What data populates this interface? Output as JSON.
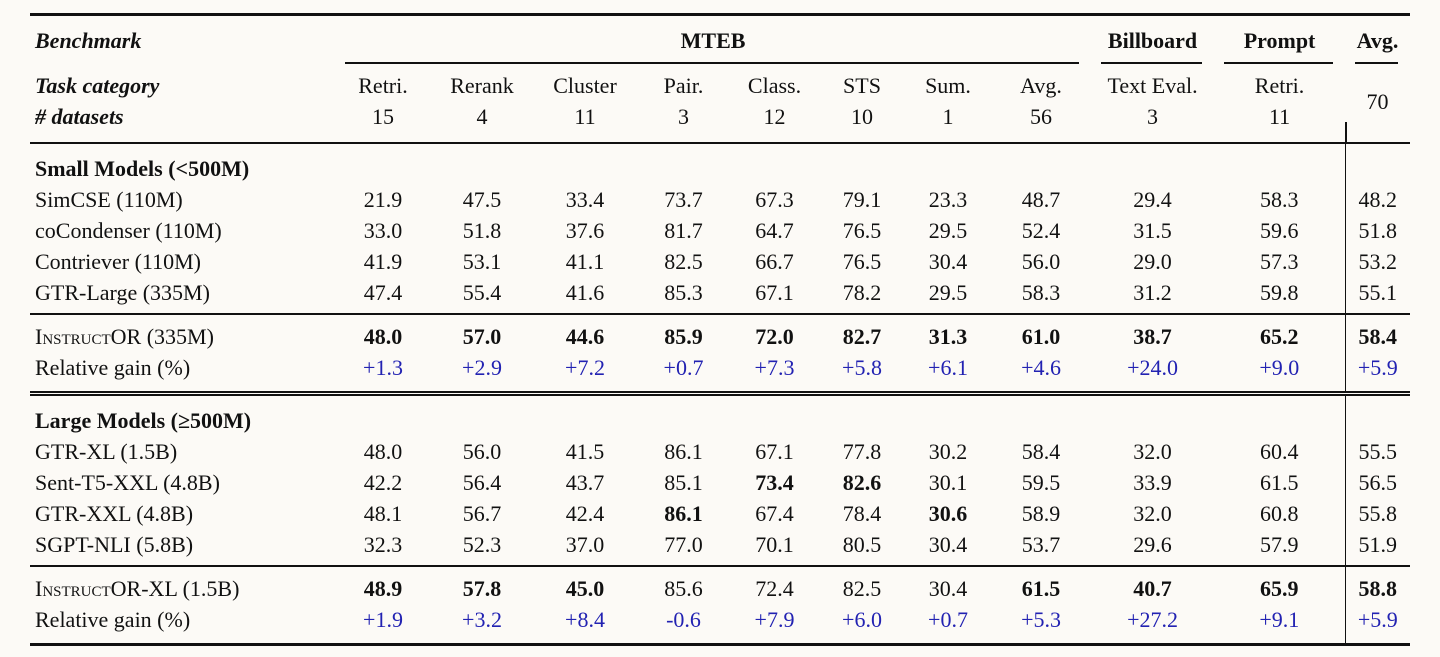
{
  "page": {
    "background": "#fcfaf6",
    "text_color": "#111111",
    "gain_color": "#2222b2"
  },
  "table": {
    "header": {
      "benchmark": "Benchmark",
      "task_category": "Task category",
      "num_datasets": "# datasets",
      "groups": {
        "mteb": "MTEB",
        "billboard": "Billboard",
        "prompt": "Prompt",
        "avg": "Avg."
      },
      "columns": [
        {
          "name": "Retri.",
          "count": "15"
        },
        {
          "name": "Rerank",
          "count": "4"
        },
        {
          "name": "Cluster",
          "count": "11"
        },
        {
          "name": "Pair.",
          "count": "3"
        },
        {
          "name": "Class.",
          "count": "12"
        },
        {
          "name": "STS",
          "count": "10"
        },
        {
          "name": "Sum.",
          "count": "1"
        },
        {
          "name": "Avg.",
          "count": "56"
        },
        {
          "name": "Text Eval.",
          "count": "3"
        },
        {
          "name": "Retri.",
          "count": "11"
        },
        {
          "name": "",
          "count": "70"
        }
      ]
    },
    "sections": [
      {
        "title": "Small Models (<500M)",
        "rows": [
          {
            "type": "model",
            "label": "SimCSE (110M)",
            "values": [
              "21.9",
              "47.5",
              "33.4",
              "73.7",
              "67.3",
              "79.1",
              "23.3",
              "48.7",
              "29.4",
              "58.3",
              "48.2"
            ],
            "bold": []
          },
          {
            "type": "model",
            "label": "coCondenser (110M)",
            "values": [
              "33.0",
              "51.8",
              "37.6",
              "81.7",
              "64.7",
              "76.5",
              "29.5",
              "52.4",
              "31.5",
              "59.6",
              "51.8"
            ],
            "bold": []
          },
          {
            "type": "model",
            "label": "Contriever (110M)",
            "values": [
              "41.9",
              "53.1",
              "41.1",
              "82.5",
              "66.7",
              "76.5",
              "30.4",
              "56.0",
              "29.0",
              "57.3",
              "53.2"
            ],
            "bold": []
          },
          {
            "type": "model",
            "label": "GTR-Large (335M)",
            "values": [
              "47.4",
              "55.4",
              "41.6",
              "85.3",
              "67.1",
              "78.2",
              "29.5",
              "58.3",
              "31.2",
              "59.8",
              "55.1"
            ],
            "bold": []
          },
          {
            "type": "instructor",
            "label": "InstructOR (335M)",
            "smallcaps": true,
            "values": [
              "48.0",
              "57.0",
              "44.6",
              "85.9",
              "72.0",
              "82.7",
              "31.3",
              "61.0",
              "38.7",
              "65.2",
              "58.4"
            ],
            "bold": [
              0,
              1,
              2,
              3,
              4,
              5,
              6,
              7,
              8,
              9,
              10
            ]
          },
          {
            "type": "gain",
            "label": "Relative gain (%)",
            "values": [
              "+1.3",
              "+2.9",
              "+7.2",
              "+0.7",
              "+7.3",
              "+5.8",
              "+6.1",
              "+4.6",
              "+24.0",
              "+9.0",
              "+5.9"
            ],
            "bold": []
          }
        ]
      },
      {
        "title": "Large Models (≥500M)",
        "rows": [
          {
            "type": "model",
            "label": "GTR-XL (1.5B)",
            "values": [
              "48.0",
              "56.0",
              "41.5",
              "86.1",
              "67.1",
              "77.8",
              "30.2",
              "58.4",
              "32.0",
              "60.4",
              "55.5"
            ],
            "bold": []
          },
          {
            "type": "model",
            "label": "Sent-T5-XXL (4.8B)",
            "values": [
              "42.2",
              "56.4",
              "43.7",
              "85.1",
              "73.4",
              "82.6",
              "30.1",
              "59.5",
              "33.9",
              "61.5",
              "56.5"
            ],
            "bold": [
              4,
              5
            ]
          },
          {
            "type": "model",
            "label": "GTR-XXL (4.8B)",
            "values": [
              "48.1",
              "56.7",
              "42.4",
              "86.1",
              "67.4",
              "78.4",
              "30.6",
              "58.9",
              "32.0",
              "60.8",
              "55.8"
            ],
            "bold": [
              3,
              6
            ]
          },
          {
            "type": "model",
            "label": "SGPT-NLI (5.8B)",
            "values": [
              "32.3",
              "52.3",
              "37.0",
              "77.0",
              "70.1",
              "80.5",
              "30.4",
              "53.7",
              "29.6",
              "57.9",
              "51.9"
            ],
            "bold": []
          },
          {
            "type": "instructor",
            "label": "InstructOR-XL (1.5B)",
            "smallcaps": true,
            "values": [
              "48.9",
              "57.8",
              "45.0",
              "85.6",
              "72.4",
              "82.5",
              "30.4",
              "61.5",
              "40.7",
              "65.9",
              "58.8"
            ],
            "bold": [
              0,
              1,
              2,
              7,
              8,
              9,
              10
            ]
          },
          {
            "type": "gain",
            "label": "Relative gain (%)",
            "values": [
              "+1.9",
              "+3.2",
              "+8.4",
              "-0.6",
              "+7.9",
              "+6.0",
              "+0.7",
              "+5.3",
              "+27.2",
              "+9.1",
              "+5.9"
            ],
            "bold": []
          }
        ]
      }
    ]
  }
}
